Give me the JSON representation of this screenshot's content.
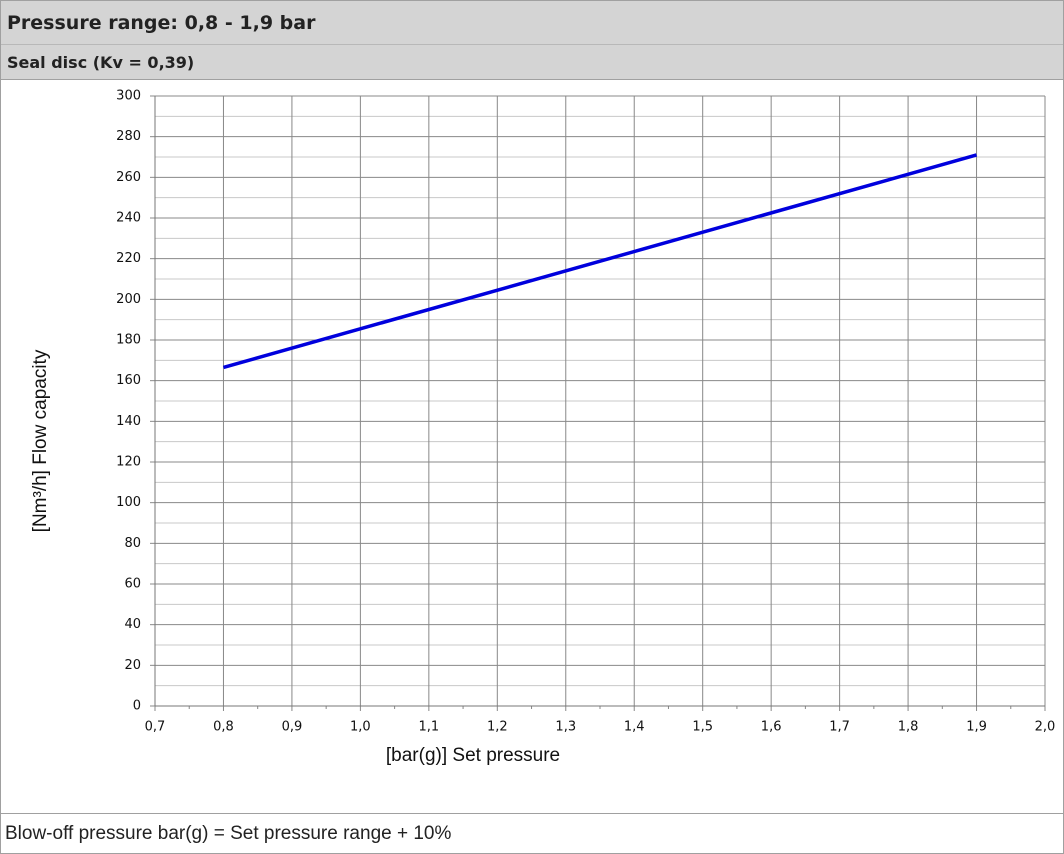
{
  "chart_data": {
    "type": "line",
    "title": "Pressure range: 0,8 - 1,9 bar",
    "subtitle": "Seal disc (Kv = 0,39)",
    "y_label": "[Nm³/h]  Flow capacity",
    "x_label": "[bar(g)]  Set pressure",
    "annotation": "Blow-off pressure bar(g) = Set pressure range + 10%",
    "x": [
      0.8,
      1.9
    ],
    "series": [
      {
        "color": "#0000dd",
        "values": [
          166.5,
          271
        ]
      }
    ],
    "xlim": [
      0.7,
      2.0
    ],
    "xticks": [
      {
        "value": 0.7,
        "label": "0,7"
      },
      {
        "value": 0.8,
        "label": "0,8"
      },
      {
        "value": 0.9,
        "label": "0,9"
      },
      {
        "value": 1.0,
        "label": "1,0"
      },
      {
        "value": 1.1,
        "label": "1,1"
      },
      {
        "value": 1.2,
        "label": "1,2"
      },
      {
        "value": 1.3,
        "label": "1,3"
      },
      {
        "value": 1.4,
        "label": "1,4"
      },
      {
        "value": 1.5,
        "label": "1,5"
      },
      {
        "value": 1.6,
        "label": "1,6"
      },
      {
        "value": 1.7,
        "label": "1,7"
      },
      {
        "value": 1.8,
        "label": "1,8"
      },
      {
        "value": 1.9,
        "label": "1,9"
      },
      {
        "value": 2.0,
        "label": "2,0"
      }
    ],
    "ylim": [
      0,
      300
    ],
    "yticks": [
      0,
      20,
      40,
      60,
      80,
      100,
      120,
      140,
      160,
      180,
      200,
      220,
      240,
      260,
      280,
      300
    ],
    "grid": true
  }
}
